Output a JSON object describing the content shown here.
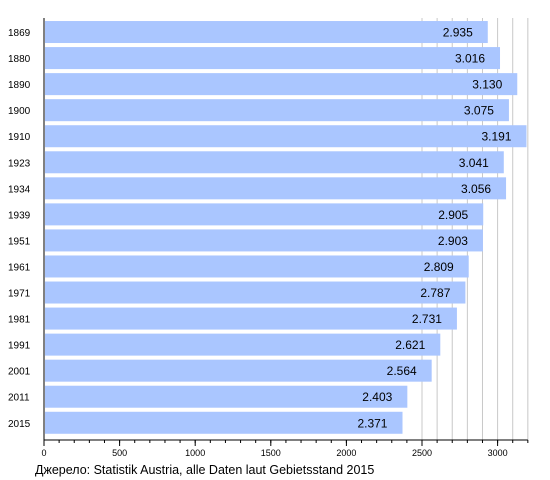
{
  "chart_data": {
    "type": "bar",
    "orientation": "horizontal",
    "categories": [
      "1869",
      "1880",
      "1890",
      "1900",
      "1910",
      "1923",
      "1934",
      "1939",
      "1951",
      "1961",
      "1971",
      "1981",
      "1991",
      "2001",
      "2011",
      "2015"
    ],
    "values": [
      2935,
      3016,
      3130,
      3075,
      3191,
      3041,
      3056,
      2905,
      2903,
      2809,
      2787,
      2731,
      2621,
      2564,
      2403,
      2371
    ],
    "value_labels": [
      "2.935",
      "3.016",
      "3.130",
      "3.075",
      "3.191",
      "3.041",
      "3.056",
      "2.905",
      "2.903",
      "2.809",
      "2.787",
      "2.731",
      "2.621",
      "2.564",
      "2.403",
      "2.371"
    ],
    "xlim": [
      0,
      3200
    ],
    "x_ticks": [
      0,
      500,
      1000,
      1500,
      2000,
      2500,
      3000
    ],
    "grid": "vertical lines every 100 from 2500 to 3200",
    "bar_color": "#aac6ff",
    "source_note": "Джерело: Statistik Austria, alle Daten laut Gebietsstand 2015"
  }
}
